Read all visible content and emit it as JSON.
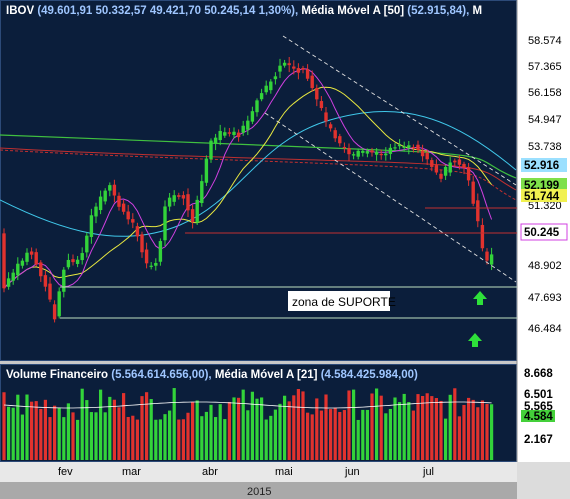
{
  "price_panel": {
    "symbol": "IBOV",
    "ohlc_text": "(49.601,91  50.332,57  49.421,70  50.245,14  1,30%),",
    "ma_title": "Média Móvel A [50]",
    "ma_value": "(52.915,84),",
    "ma_more": "M",
    "axis_labels": [
      "58.574",
      "57.365",
      "56.158",
      "54.947",
      "53.738",
      "51.320",
      "48.902",
      "47.693",
      "46.484"
    ],
    "badges": [
      {
        "text": "52.916",
        "color": "#9be0ff"
      },
      {
        "text": "52.199",
        "color": "#7fe04a"
      },
      {
        "text": "51.744",
        "color": "#f1f150"
      },
      {
        "text": "50.245",
        "color": "#ffffff"
      }
    ],
    "annotation": "zona de SUPORTE"
  },
  "volume_panel": {
    "title": "Volume Financeiro",
    "value": "(5.564.614.656,00),",
    "ma_title": "Média Móvel A [21]",
    "ma_value": "(4.584.425.984,00)",
    "axis_labels": [
      "8.668",
      "6.501",
      "2.167"
    ],
    "badges": [
      {
        "text": "5.565",
        "color": "#ffffff"
      },
      {
        "text": "4.584",
        "color": "#44d03a"
      }
    ]
  },
  "time_axis": {
    "months": [
      "fev",
      "mar",
      "abr",
      "mai",
      "jun",
      "jul"
    ],
    "year": "2015"
  },
  "colors": {
    "background": "#0b1e3b",
    "up": "#33d33a",
    "down": "#e2322e",
    "ma_fast": "#d040e0",
    "ma_mid": "#e8e840",
    "ma_slow": "#40c8ea",
    "ma_long": "#c03030",
    "ma_green": "#40c040"
  },
  "chart_data": {
    "type": "candlestick",
    "series": [
      {
        "name": "IBOV",
        "values": []
      }
    ]
  }
}
